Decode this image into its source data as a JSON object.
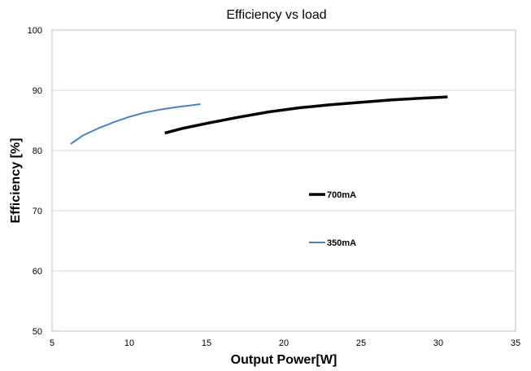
{
  "chart_data": {
    "type": "line",
    "title": "Efficiency vs load",
    "xlabel": "Output Power[W]",
    "ylabel": "Efficiency [%]",
    "xlim": [
      5,
      35
    ],
    "ylim": [
      50,
      100
    ],
    "xticks": [
      5,
      10,
      15,
      20,
      25,
      30,
      35
    ],
    "yticks": [
      50,
      60,
      70,
      80,
      90,
      100
    ],
    "grid": "horizontal",
    "legend_placement": "center-right",
    "series": [
      {
        "name": "700mA",
        "color": "#000000",
        "x": [
          12.3,
          13.5,
          15,
          17,
          19,
          21,
          23,
          25,
          27,
          29,
          30.6
        ],
        "y": [
          82.9,
          83.7,
          84.5,
          85.5,
          86.4,
          87.1,
          87.6,
          88.0,
          88.4,
          88.7,
          88.9
        ]
      },
      {
        "name": "350mA",
        "color": "#4f81bd",
        "x": [
          6.2,
          7.0,
          8.0,
          9.0,
          10.0,
          11.0,
          12.0,
          13.0,
          14.0,
          14.6
        ],
        "y": [
          81.1,
          82.5,
          83.7,
          84.7,
          85.6,
          86.3,
          86.8,
          87.2,
          87.5,
          87.7
        ]
      }
    ]
  }
}
